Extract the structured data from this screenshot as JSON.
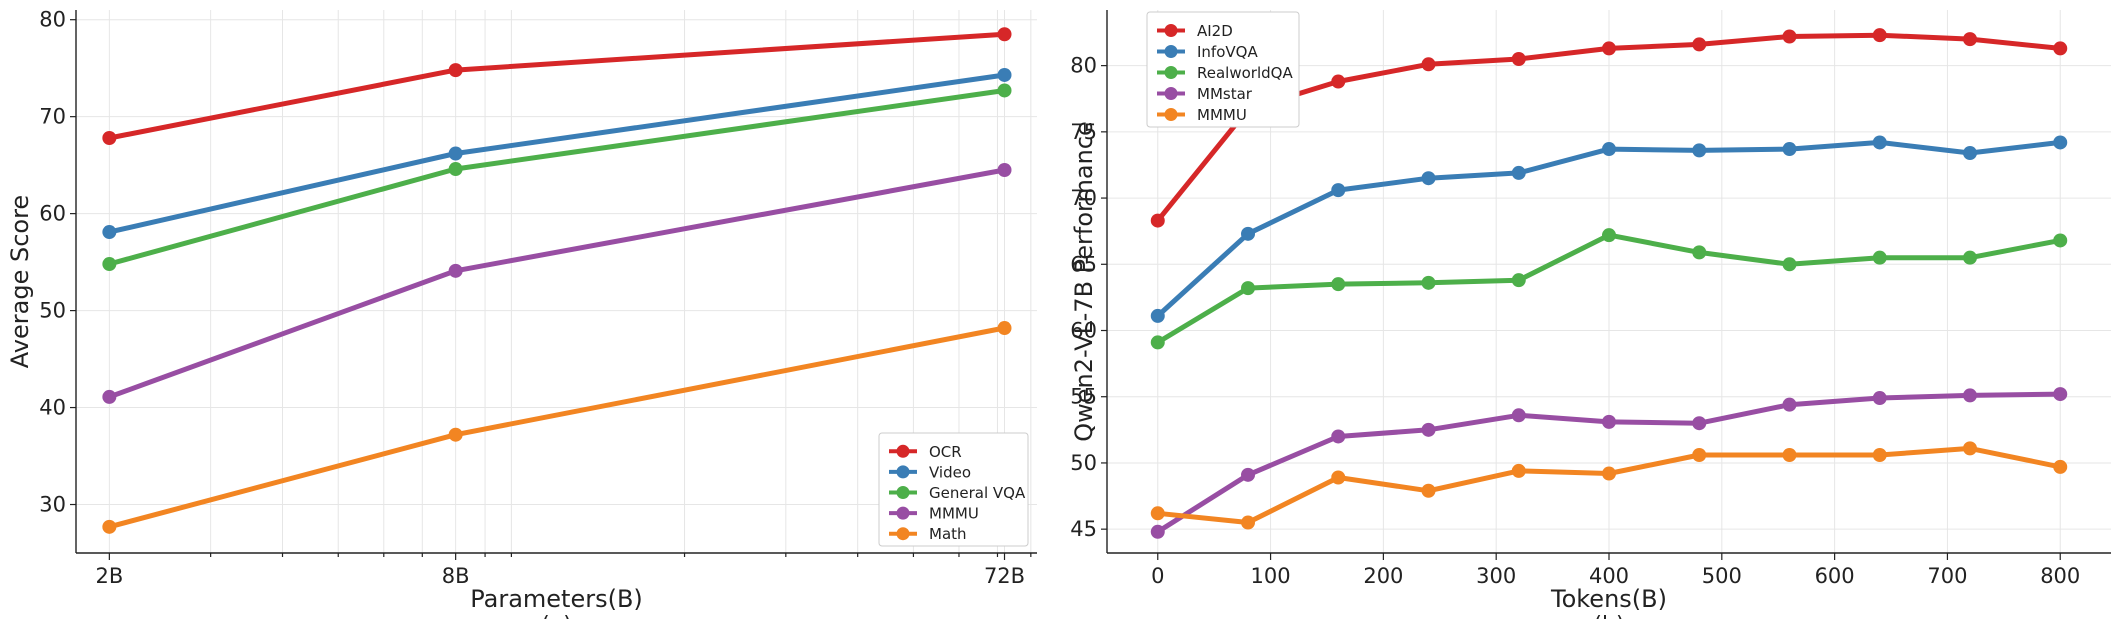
{
  "chart_data": [
    {
      "type": "line",
      "panel_caption": "(a)",
      "xlabel": "Parameters(B)",
      "ylabel": "Average Score",
      "x_scale": "log",
      "x": [
        2,
        8,
        72
      ],
      "x_tick_labels": [
        "2B",
        "8B",
        "72B"
      ],
      "xlim": [
        1.75,
        82
      ],
      "ylim": [
        25,
        81
      ],
      "y_ticks": [
        30,
        40,
        50,
        60,
        70,
        80
      ],
      "grid": true,
      "legend_position": "lower-right",
      "series": [
        {
          "name": "OCR",
          "color": "#d62728",
          "values": [
            67.8,
            74.8,
            78.5
          ]
        },
        {
          "name": "Video",
          "color": "#3a7db5",
          "values": [
            58.1,
            66.2,
            74.3
          ]
        },
        {
          "name": "General VQA",
          "color": "#4daf4a",
          "values": [
            54.8,
            64.6,
            72.7
          ]
        },
        {
          "name": "MMMU",
          "color": "#984ea3",
          "values": [
            41.1,
            54.1,
            64.5
          ]
        },
        {
          "name": "Math",
          "color": "#f28522",
          "values": [
            27.7,
            37.2,
            48.2
          ]
        }
      ]
    },
    {
      "type": "line",
      "panel_caption": "(b)",
      "xlabel": "Tokens(B)",
      "ylabel": "Qwen2-VL-7B Performance",
      "x": [
        0,
        80,
        160,
        240,
        320,
        400,
        480,
        560,
        640,
        720,
        800
      ],
      "x_ticks": [
        0,
        100,
        200,
        300,
        400,
        500,
        600,
        700,
        800
      ],
      "xlim": [
        -45,
        845
      ],
      "ylim": [
        43.2,
        84.2
      ],
      "y_ticks": [
        45,
        50,
        55,
        60,
        65,
        70,
        75,
        80
      ],
      "grid": true,
      "legend_position": "upper-left",
      "series": [
        {
          "name": "AI2D",
          "color": "#d62728",
          "values": [
            68.3,
            76.7,
            78.8,
            80.1,
            80.5,
            81.3,
            81.6,
            82.2,
            82.3,
            82.0,
            81.3
          ]
        },
        {
          "name": "InfoVQA",
          "color": "#3a7db5",
          "values": [
            61.1,
            67.3,
            70.6,
            71.5,
            71.9,
            73.7,
            73.6,
            73.7,
            74.2,
            73.4,
            74.2
          ]
        },
        {
          "name": "RealworldQA",
          "color": "#4daf4a",
          "values": [
            59.1,
            63.2,
            63.5,
            63.6,
            63.8,
            67.2,
            65.9,
            65.0,
            65.5,
            65.5,
            66.8
          ]
        },
        {
          "name": "MMstar",
          "color": "#984ea3",
          "values": [
            44.8,
            49.1,
            52.0,
            52.5,
            53.6,
            53.1,
            53.0,
            54.4,
            54.9,
            55.1,
            55.2
          ]
        },
        {
          "name": "MMMU",
          "color": "#f28522",
          "values": [
            46.2,
            45.5,
            48.9,
            47.9,
            49.4,
            49.2,
            50.6,
            50.6,
            50.6,
            51.1,
            49.7
          ]
        }
      ]
    }
  ]
}
